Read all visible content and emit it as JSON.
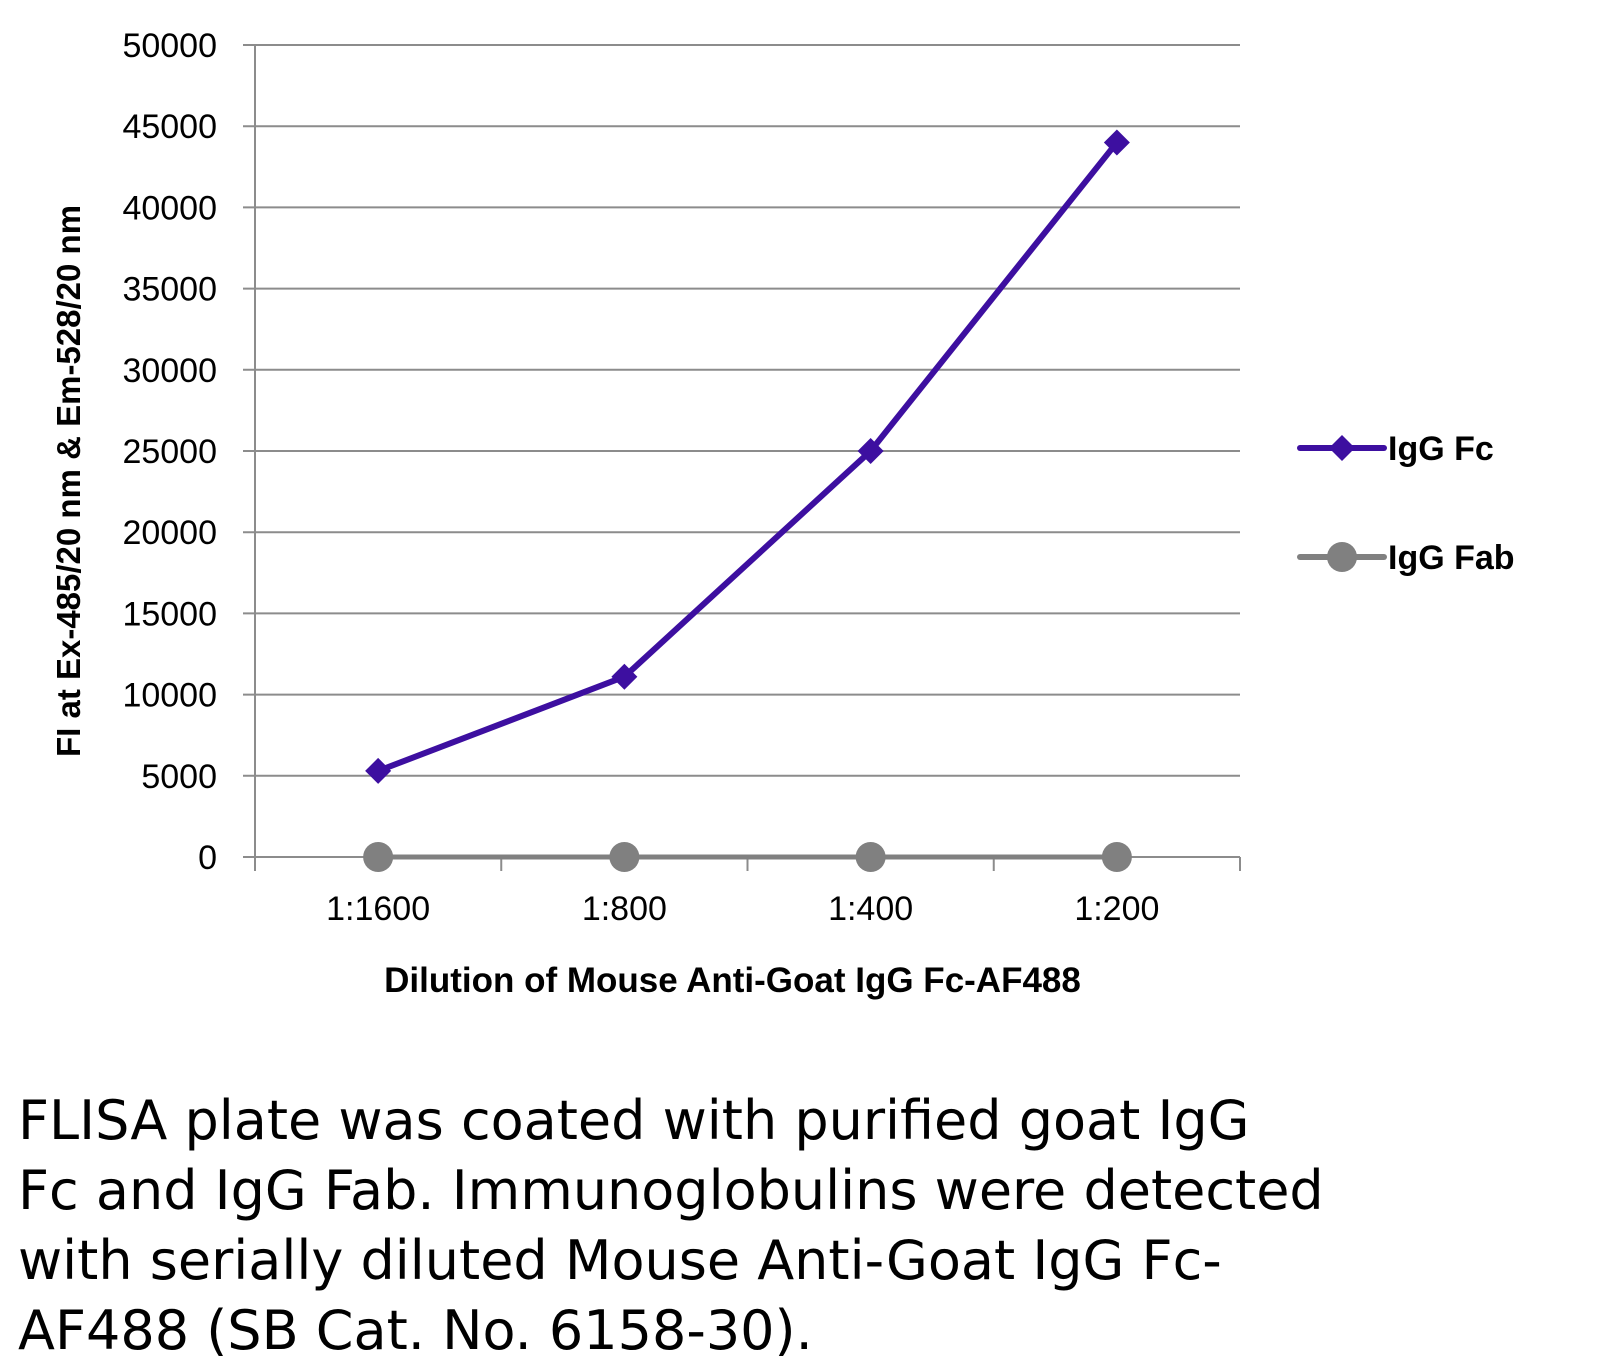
{
  "chart_data": {
    "type": "line",
    "categories": [
      "1:1600",
      "1:800",
      "1:400",
      "1:200"
    ],
    "series": [
      {
        "name": "IgG Fc",
        "values": [
          5300,
          11100,
          25000,
          44000
        ],
        "color": "#3d0fa0",
        "marker": "diamond"
      },
      {
        "name": "IgG Fab",
        "values": [
          0,
          0,
          0,
          0
        ],
        "color": "#808080",
        "marker": "circle"
      }
    ],
    "title": "",
    "xlabel": "Dilution of Mouse Anti-Goat IgG Fc-AF488",
    "ylabel": "FI at Ex-485/20 nm & Em-528/20 nm",
    "ylim": [
      0,
      50000
    ],
    "yticks": [
      "0",
      "5000",
      "10000",
      "15000",
      "20000",
      "25000",
      "30000",
      "35000",
      "40000",
      "45000",
      "50000"
    ],
    "grid": true,
    "legend": "right"
  },
  "caption": {
    "lines": [
      "FLISA plate was coated with purified goat IgG",
      "Fc and IgG Fab.  Immunoglobulins were detected",
      "with serially diluted Mouse Anti-Goat IgG Fc-",
      "AF488 (SB Cat. No. 6158-30)."
    ]
  }
}
